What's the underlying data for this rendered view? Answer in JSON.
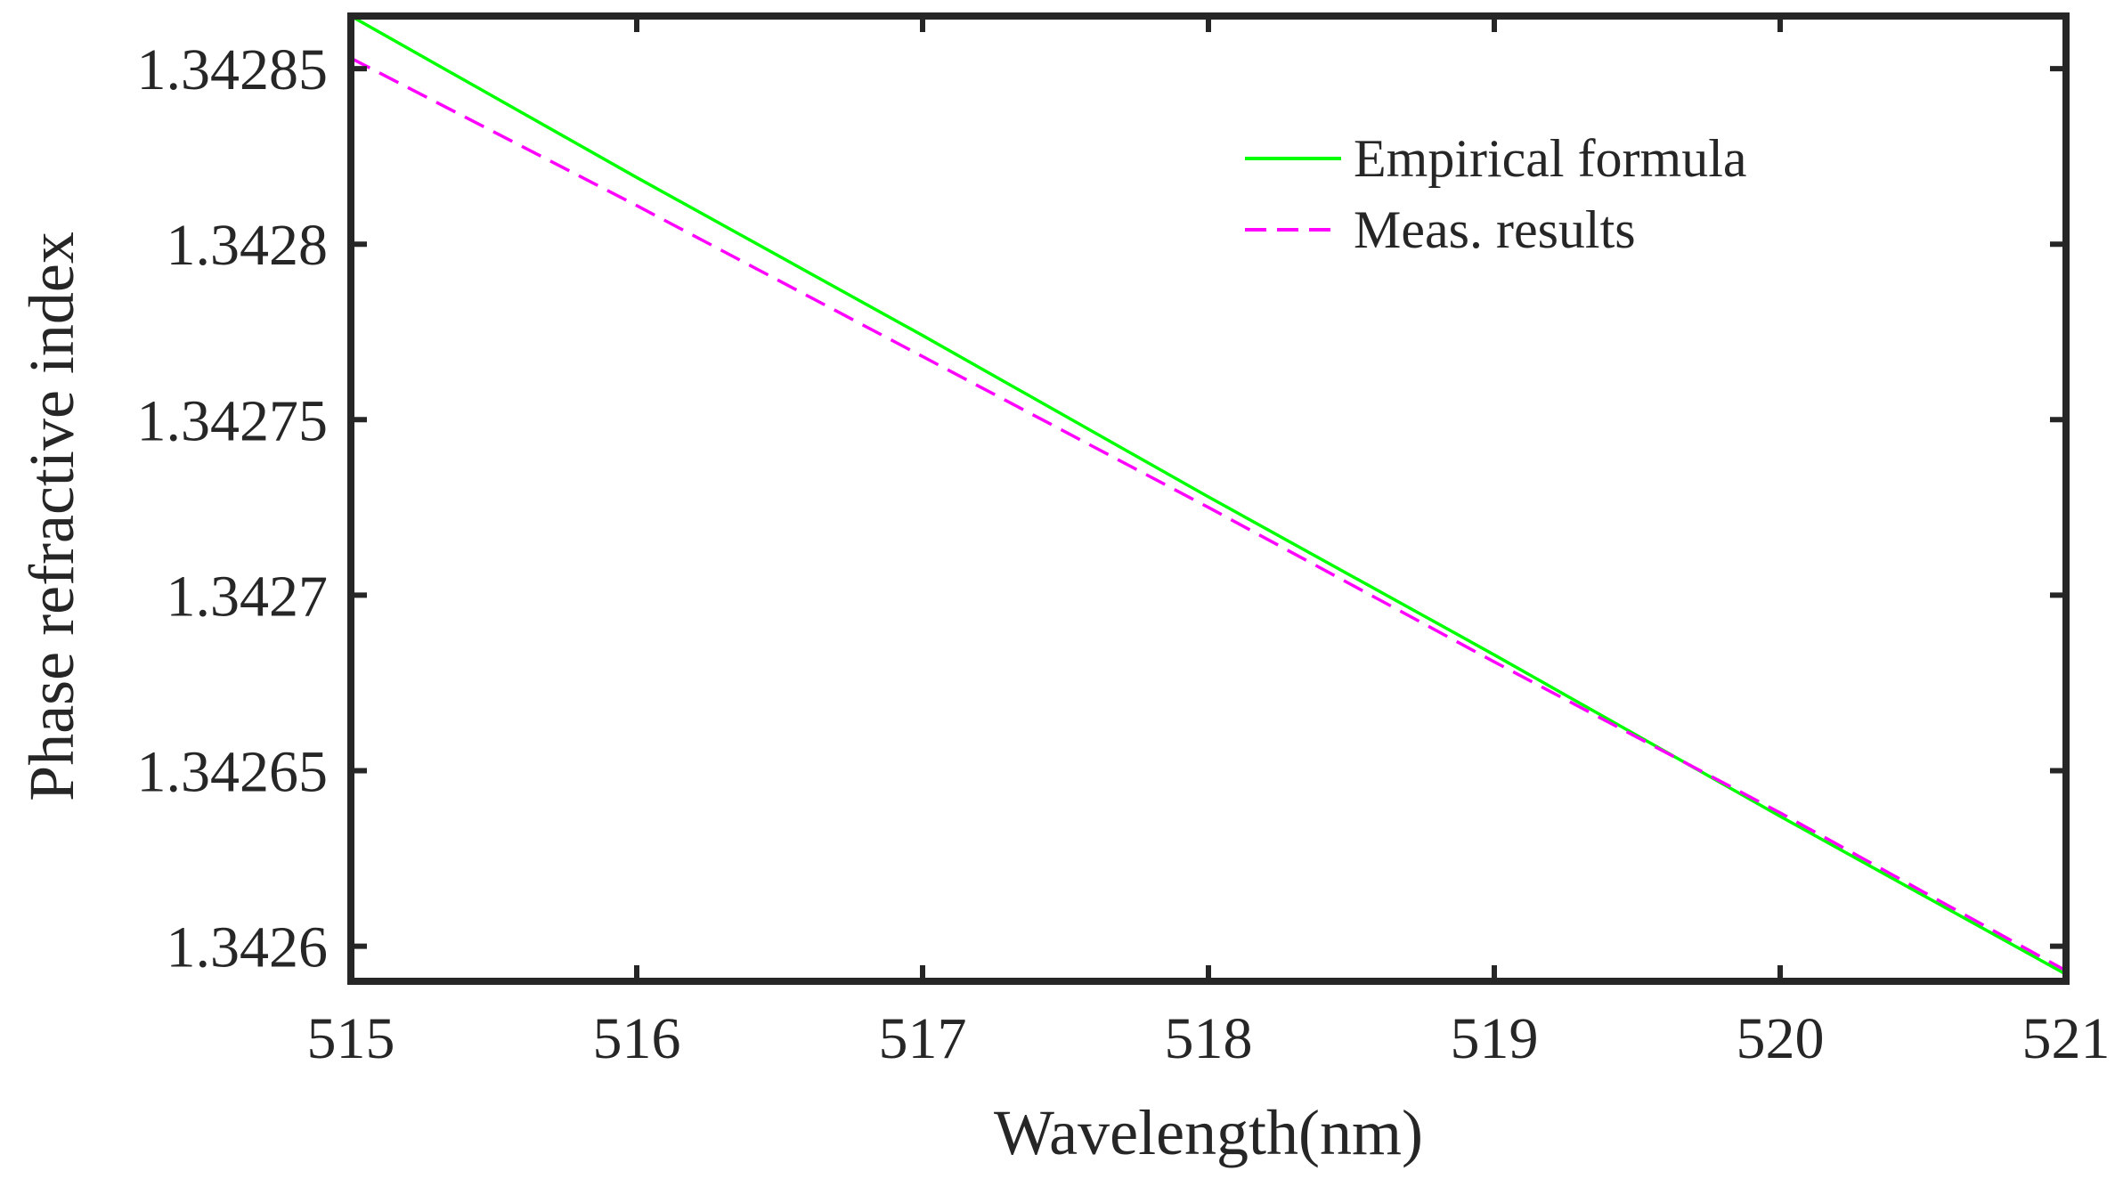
{
  "chart_data": {
    "type": "line",
    "title": "",
    "xlabel": "Wavelength(nm)",
    "ylabel": "Phase refractive index",
    "xlim": [
      515,
      521
    ],
    "ylim": [
      1.34259,
      1.342865
    ],
    "xticks": [
      515,
      516,
      517,
      518,
      519,
      520,
      521
    ],
    "xtick_labels": [
      "515",
      "516",
      "517",
      "518",
      "519",
      "520",
      "521"
    ],
    "yticks": [
      1.3426,
      1.34265,
      1.3427,
      1.34275,
      1.3428,
      1.34285
    ],
    "ytick_labels": [
      "1.3426",
      "1.34265",
      "1.3427",
      "1.34275",
      "1.3428",
      "1.34285"
    ],
    "grid": false,
    "legend_position": "top-right",
    "series": [
      {
        "name": "Empirical formula",
        "style": "solid",
        "color": "#00ff00",
        "x": [
          515,
          516,
          517,
          518,
          519,
          520,
          521
        ],
        "y": [
          1.342865,
          1.342819,
          1.342774,
          1.342728,
          1.342683,
          1.342637,
          1.342592
        ]
      },
      {
        "name": "Meas. results",
        "style": "dashed",
        "color": "#ff00ff",
        "x": [
          515,
          516,
          517,
          518,
          519,
          520,
          521
        ],
        "y": [
          1.342853,
          1.342811,
          1.342768,
          1.342725,
          1.342681,
          1.342638,
          1.342593
        ]
      }
    ]
  }
}
